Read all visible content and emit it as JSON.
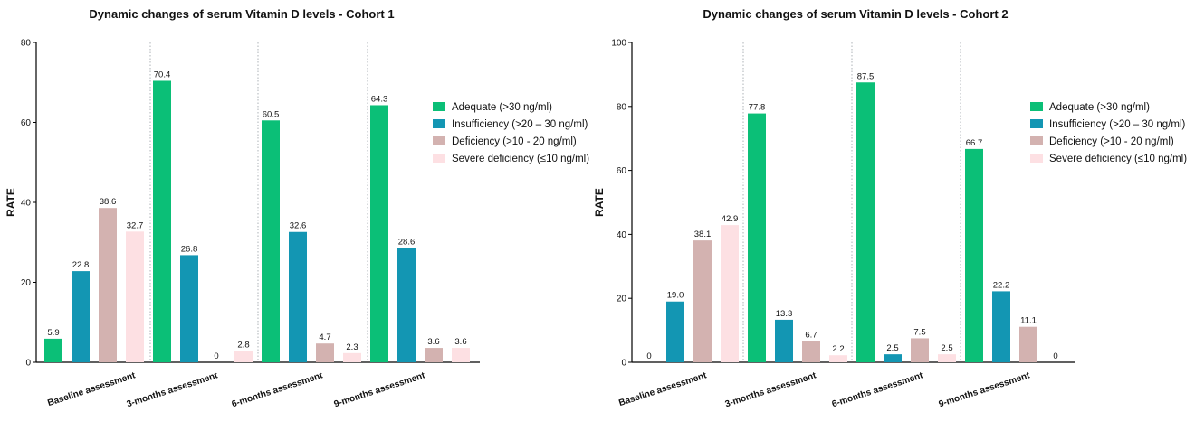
{
  "legend": [
    {
      "label": "Adequate (>30 ng/ml)",
      "color": "#0bbf77"
    },
    {
      "label": "Insufficiency (>20 – 30 ng/ml)",
      "color": "#1396b3"
    },
    {
      "label": "Deficiency (>10 - 20 ng/ml)",
      "color": "#d3b2b0"
    },
    {
      "label": "Severe deficiency (≤10 ng/ml)",
      "color": "#fde0e3"
    }
  ],
  "chart_data": [
    {
      "type": "bar",
      "title": "Dynamic changes of serum Vitamin D levels - Cohort 1",
      "ylabel": "RATE",
      "xlabel": "",
      "ylim": [
        0,
        80
      ],
      "yticks": [
        0,
        20,
        40,
        60,
        80
      ],
      "ytick_labels": [
        "0",
        "20",
        "40",
        "60",
        "80"
      ],
      "categories": [
        "Baseline assessment",
        "3-months assessment",
        "6-months assessment",
        "9-months assessment"
      ],
      "series": [
        {
          "name": "Adequate (>30 ng/ml)",
          "values": [
            5.9,
            70.4,
            60.5,
            64.3
          ],
          "labels": [
            "5.9",
            "70.4",
            "60.5",
            "64.3"
          ]
        },
        {
          "name": "Insufficiency (>20 – 30 ng/ml)",
          "values": [
            22.8,
            26.8,
            32.6,
            28.6
          ],
          "labels": [
            "22.8",
            "26.8",
            "32.6",
            "28.6"
          ]
        },
        {
          "name": "Deficiency (>10 - 20 ng/ml)",
          "values": [
            38.6,
            0,
            4.7,
            3.6
          ],
          "labels": [
            "38.6",
            "0",
            "4.7",
            "3.6"
          ]
        },
        {
          "name": "Severe deficiency (≤10 ng/ml)",
          "values": [
            32.7,
            2.8,
            2.3,
            3.6
          ],
          "labels": [
            "32.7",
            "2.8",
            "2.3",
            "3.6"
          ]
        }
      ],
      "legend_position": "right",
      "grid": false
    },
    {
      "type": "bar",
      "title": "Dynamic changes of serum Vitamin D levels - Cohort 2",
      "ylabel": "RATE",
      "xlabel": "",
      "ylim": [
        0,
        100
      ],
      "yticks": [
        0,
        20,
        40,
        60,
        80,
        100
      ],
      "ytick_labels": [
        "0",
        "20",
        "40",
        "60",
        "80",
        "100"
      ],
      "categories": [
        "Baseline assessment",
        "3-months assessment",
        "6-months assessment",
        "9-months assessment"
      ],
      "series": [
        {
          "name": "Adequate (>30 ng/ml)",
          "values": [
            0,
            77.8,
            87.5,
            66.7
          ],
          "labels": [
            "0",
            "77.8",
            "87.5",
            "66.7"
          ]
        },
        {
          "name": "Insufficiency (>20 – 30 ng/ml)",
          "values": [
            19.0,
            13.3,
            2.5,
            22.2
          ],
          "labels": [
            "19.0",
            "13.3",
            "2.5",
            "22.2"
          ]
        },
        {
          "name": "Deficiency (>10 - 20 ng/ml)",
          "values": [
            38.1,
            6.7,
            7.5,
            11.1
          ],
          "labels": [
            "38.1",
            "6.7",
            "7.5",
            "11.1"
          ]
        },
        {
          "name": "Severe deficiency (≤10 ng/ml)",
          "values": [
            42.9,
            2.2,
            2.5,
            0
          ],
          "labels": [
            "42.9",
            "2.2",
            "2.5",
            "0"
          ]
        }
      ],
      "legend_position": "right",
      "grid": false
    }
  ]
}
